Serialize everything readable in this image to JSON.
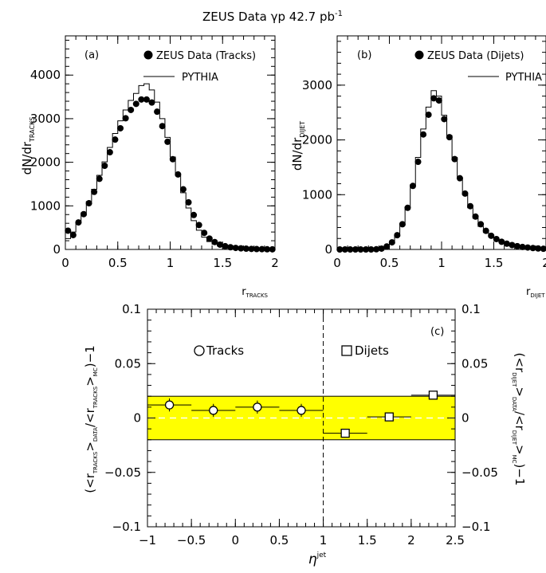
{
  "title": {
    "main": "ZEUS Data γp 42.7 pb",
    "exp": "-1"
  },
  "chart_data": [
    {
      "type": "histogram",
      "panel_label": "(a)",
      "xlim": [
        0,
        2
      ],
      "ylim": [
        0,
        4900
      ],
      "xticks": [
        "0",
        "0.5",
        "1",
        "1.5",
        "2"
      ],
      "yticks": [
        "0",
        "1000",
        "2000",
        "3000",
        "4000"
      ],
      "ylabel": {
        "main": "dN/dr",
        "sub": "TRACKS"
      },
      "xlabel": {
        "main": "r",
        "sub": "TRACKS"
      },
      "legend": [
        "ZEUS Data (Tracks)",
        "PYTHIA"
      ],
      "data": {
        "name": "ZEUS Data (Tracks)",
        "x": [
          0.025,
          0.075,
          0.125,
          0.175,
          0.225,
          0.275,
          0.325,
          0.375,
          0.425,
          0.475,
          0.525,
          0.575,
          0.625,
          0.675,
          0.725,
          0.775,
          0.825,
          0.875,
          0.925,
          0.975,
          1.025,
          1.075,
          1.125,
          1.175,
          1.225,
          1.275,
          1.325,
          1.375,
          1.425,
          1.475,
          1.525,
          1.575,
          1.625,
          1.675,
          1.725,
          1.775,
          1.825,
          1.875,
          1.925,
          1.975
        ],
        "y": [
          430,
          330,
          620,
          810,
          1060,
          1320,
          1620,
          1920,
          2230,
          2520,
          2780,
          3010,
          3200,
          3340,
          3440,
          3440,
          3370,
          3160,
          2830,
          2470,
          2070,
          1720,
          1380,
          1080,
          790,
          560,
          380,
          250,
          170,
          110,
          75,
          50,
          35,
          25,
          18,
          12,
          8,
          6,
          4,
          3
        ]
      },
      "mc": {
        "name": "PYTHIA",
        "y": [
          250,
          400,
          620,
          840,
          1100,
          1380,
          1700,
          2010,
          2340,
          2660,
          2950,
          3200,
          3420,
          3580,
          3760,
          3800,
          3660,
          3380,
          3000,
          2570,
          2120,
          1700,
          1300,
          950,
          660,
          440,
          280,
          180,
          120,
          80,
          55,
          40,
          28,
          20,
          14,
          10,
          7,
          5,
          3,
          2
        ]
      }
    },
    {
      "type": "histogram",
      "panel_label": "(b)",
      "xlim": [
        0,
        2
      ],
      "ylim": [
        0,
        3900
      ],
      "xticks": [
        "0",
        "0.5",
        "1",
        "1.5",
        "2"
      ],
      "yticks": [
        "0",
        "1000",
        "2000",
        "3000"
      ],
      "ylabel": {
        "main": "dN/dr",
        "sub": "DIJET"
      },
      "xlabel": {
        "main": "r",
        "sub": "DIJET"
      },
      "legend": [
        "ZEUS Data (Dijets)",
        "PYTHIA"
      ],
      "data": {
        "name": "ZEUS Data (Dijets)",
        "x": [
          0.025,
          0.075,
          0.125,
          0.175,
          0.225,
          0.275,
          0.325,
          0.375,
          0.425,
          0.475,
          0.525,
          0.575,
          0.625,
          0.675,
          0.725,
          0.775,
          0.825,
          0.875,
          0.925,
          0.975,
          1.025,
          1.075,
          1.125,
          1.175,
          1.225,
          1.275,
          1.325,
          1.375,
          1.425,
          1.475,
          1.525,
          1.575,
          1.625,
          1.675,
          1.725,
          1.775,
          1.825,
          1.875,
          1.925,
          1.975
        ],
        "y": [
          0,
          0,
          0,
          0,
          0,
          0,
          0,
          3,
          15,
          55,
          130,
          260,
          460,
          760,
          1160,
          1600,
          2100,
          2460,
          2760,
          2720,
          2380,
          2050,
          1650,
          1300,
          1020,
          790,
          600,
          460,
          340,
          250,
          190,
          140,
          105,
          80,
          60,
          45,
          35,
          25,
          18,
          12
        ]
      },
      "mc": {
        "name": "PYTHIA",
        "y": [
          0,
          0,
          0,
          0,
          0,
          0,
          0,
          2,
          10,
          40,
          110,
          240,
          440,
          760,
          1180,
          1680,
          2200,
          2600,
          2900,
          2800,
          2450,
          2080,
          1680,
          1310,
          1000,
          760,
          570,
          420,
          310,
          230,
          170,
          125,
          92,
          68,
          50,
          37,
          28,
          20,
          14,
          10
        ]
      }
    },
    {
      "type": "scatter",
      "panel_label": "(c)",
      "xlim": [
        -1,
        2.5
      ],
      "ylim": [
        -0.1,
        0.1
      ],
      "xticks": [
        "−1",
        "−0.5",
        "0",
        "0.5",
        "1",
        "1.5",
        "2",
        "2.5"
      ],
      "yticks": [
        "−0.1",
        "−0.05",
        "0",
        "0.05",
        "0.1"
      ],
      "xlabel": {
        "main": "η",
        "sup": "jet"
      },
      "ylabel_left": {
        "pre": "(<r",
        "s1": "TRACKS",
        "m1": ">",
        "s2": "DATA",
        "m2": "/<r",
        "s3": "TRACKS",
        "m3": ">",
        "s4": "MC",
        "post": ")−1"
      },
      "ylabel_right": {
        "pre": "(<r",
        "s1": "DIJET",
        "m1": ">",
        "s2": "DATA",
        "m2": "/<r",
        "s3": "DIJET",
        "m3": ">",
        "s4": "MC",
        "post": ")−1"
      },
      "band": [
        -0.02,
        0.02
      ],
      "band_color": "#ffff00",
      "divider_x": 1,
      "series": [
        {
          "name": "Tracks",
          "marker": "circle",
          "x": [
            -0.75,
            -0.25,
            0.25,
            0.75
          ],
          "y": [
            0.012,
            0.007,
            0.01,
            0.007
          ],
          "xerr": 0.25,
          "yerr": 0.006
        },
        {
          "name": "Dijets",
          "marker": "square",
          "x": [
            1.25,
            1.75,
            2.25
          ],
          "y": [
            -0.014,
            0.001,
            0.021
          ],
          "xerr": 0.25,
          "yerr": 0.002
        }
      ]
    }
  ]
}
